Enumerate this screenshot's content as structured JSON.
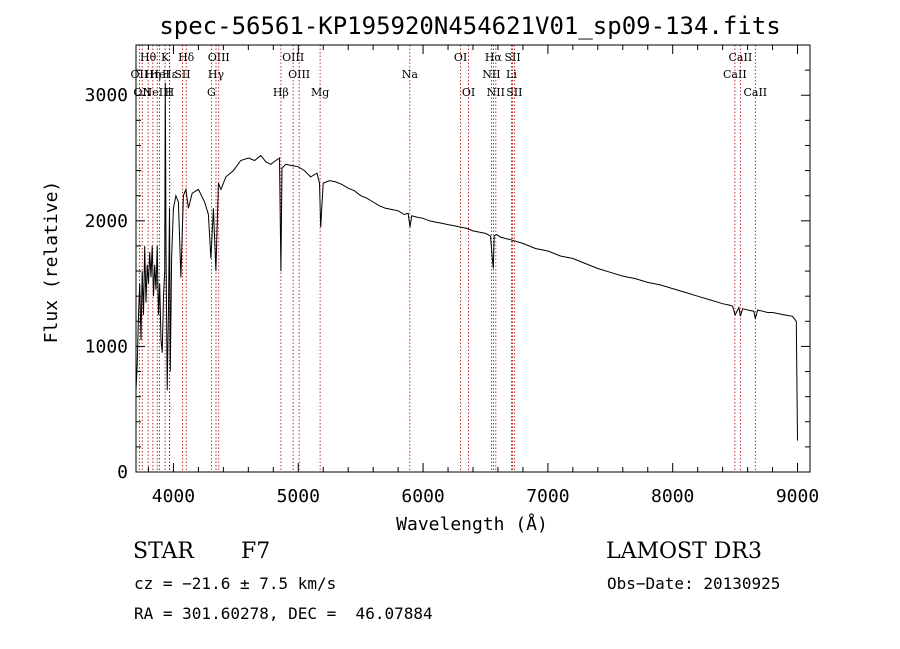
{
  "chart_data": {
    "type": "line",
    "title": "spec-56561-KP195920N454621V01_sp09-134.fits",
    "xlabel": "Wavelength (Å)",
    "ylabel": "Flux (relative)",
    "xlim": [
      3700,
      9100
    ],
    "ylim": [
      0,
      3400
    ],
    "x_ticks": [
      4000,
      5000,
      6000,
      7000,
      8000,
      9000
    ],
    "y_ticks": [
      0,
      1000,
      2000,
      3000
    ],
    "series": [
      {
        "name": "spectrum",
        "x": [
          3700,
          3710,
          3720,
          3730,
          3740,
          3750,
          3760,
          3770,
          3780,
          3790,
          3800,
          3810,
          3820,
          3830,
          3840,
          3850,
          3860,
          3870,
          3880,
          3890,
          3900,
          3910,
          3920,
          3930,
          3935,
          3940,
          3950,
          3960,
          3968,
          3975,
          3985,
          4000,
          4020,
          4040,
          4060,
          4080,
          4100,
          4120,
          4150,
          4200,
          4250,
          4280,
          4300,
          4320,
          4340,
          4360,
          4380,
          4420,
          4480,
          4540,
          4600,
          4650,
          4700,
          4740,
          4780,
          4820,
          4850,
          4861,
          4870,
          4900,
          4950,
          5000,
          5050,
          5100,
          5150,
          5170,
          5180,
          5200,
          5250,
          5300,
          5350,
          5400,
          5450,
          5500,
          5550,
          5600,
          5650,
          5700,
          5750,
          5800,
          5850,
          5880,
          5895,
          5910,
          5950,
          6000,
          6050,
          6100,
          6150,
          6200,
          6250,
          6300,
          6350,
          6400,
          6450,
          6500,
          6540,
          6555,
          6563,
          6570,
          6590,
          6620,
          6700,
          6800,
          6900,
          7000,
          7100,
          7200,
          7300,
          7400,
          7500,
          7600,
          7700,
          7800,
          7900,
          8000,
          8100,
          8200,
          8300,
          8400,
          8450,
          8480,
          8500,
          8530,
          8542,
          8560,
          8600,
          8650,
          8662,
          8680,
          8720,
          8760,
          8800,
          8850,
          8900,
          8960,
          8990,
          9000
        ],
        "y": [
          650,
          850,
          1250,
          1500,
          1050,
          1600,
          1250,
          1800,
          1350,
          1650,
          1500,
          1750,
          1550,
          1800,
          1400,
          1650,
          1450,
          1800,
          1250,
          1500,
          1050,
          950,
          1400,
          1600,
          3100,
          1800,
          650,
          1300,
          2100,
          800,
          1700,
          2100,
          2200,
          2150,
          1550,
          2200,
          2250,
          2100,
          2220,
          2250,
          2150,
          2050,
          1700,
          2100,
          1600,
          2300,
          2250,
          2350,
          2400,
          2480,
          2500,
          2480,
          2520,
          2470,
          2450,
          2480,
          2500,
          1600,
          2420,
          2450,
          2440,
          2430,
          2400,
          2350,
          2380,
          2300,
          1950,
          2300,
          2320,
          2310,
          2290,
          2260,
          2240,
          2200,
          2180,
          2150,
          2120,
          2100,
          2090,
          2080,
          2050,
          2060,
          1950,
          2040,
          2030,
          2020,
          2000,
          1990,
          1980,
          1970,
          1960,
          1950,
          1940,
          1920,
          1910,
          1900,
          1880,
          1700,
          1620,
          1880,
          1890,
          1870,
          1850,
          1820,
          1780,
          1760,
          1720,
          1700,
          1660,
          1620,
          1590,
          1560,
          1540,
          1510,
          1490,
          1460,
          1430,
          1400,
          1370,
          1340,
          1330,
          1320,
          1250,
          1310,
          1240,
          1300,
          1290,
          1280,
          1220,
          1290,
          1280,
          1270,
          1270,
          1260,
          1250,
          1240,
          1200,
          250
        ]
      }
    ],
    "lines": [
      {
        "wave": 3727,
        "label": "OII",
        "row": 2
      },
      {
        "wave": 3750,
        "label": "OII",
        "row": 3
      },
      {
        "wave": 3797,
        "label": "Hθ",
        "row": 1
      },
      {
        "wave": 3835,
        "label": "Hη",
        "row": 2
      },
      {
        "wave": 3870,
        "label": "NeIII",
        "row": 3
      },
      {
        "wave": 3889,
        "label": "HeI",
        "row": 2
      },
      {
        "wave": 3933,
        "label": "K",
        "row": 1
      },
      {
        "wave": 3968,
        "label": "H",
        "row": 3
      },
      {
        "wave": 3970,
        "label": "Hε",
        "row": 2
      },
      {
        "wave": 4072,
        "label": "SII",
        "row": 2
      },
      {
        "wave": 4102,
        "label": "Hδ",
        "row": 1
      },
      {
        "wave": 4304,
        "label": "G",
        "row": 3
      },
      {
        "wave": 4341,
        "label": "Hγ",
        "row": 2
      },
      {
        "wave": 4363,
        "label": "OIII",
        "row": 1
      },
      {
        "wave": 4861,
        "label": "Hβ",
        "row": 3
      },
      {
        "wave": 4959,
        "label": "OIII",
        "row": 1
      },
      {
        "wave": 5007,
        "label": "OIII",
        "row": 2
      },
      {
        "wave": 5175,
        "label": "Mg",
        "row": 3
      },
      {
        "wave": 5894,
        "label": "Na",
        "row": 2
      },
      {
        "wave": 6300,
        "label": "OI",
        "row": 1
      },
      {
        "wave": 6364,
        "label": "OI",
        "row": 3
      },
      {
        "wave": 6548,
        "label": "NII",
        "row": 2
      },
      {
        "wave": 6563,
        "label": "Hα",
        "row": 1
      },
      {
        "wave": 6583,
        "label": "NII",
        "row": 3
      },
      {
        "wave": 6708,
        "label": "Li",
        "row": 2
      },
      {
        "wave": 6717,
        "label": "SII",
        "row": 1
      },
      {
        "wave": 6731,
        "label": "SII",
        "row": 3
      },
      {
        "wave": 8498,
        "label": "CaII",
        "row": 2
      },
      {
        "wave": 8542,
        "label": "CaII",
        "row": 1
      },
      {
        "wave": 8662,
        "label": "CaII",
        "row": 3
      }
    ]
  },
  "info": {
    "class": "STAR",
    "subclass": "F7",
    "survey": "LAMOST DR3",
    "cz": "cz = −21.6 ± 7.5 km/s",
    "obs_date": "Obs−Date: 20130925",
    "coords": "RA = 301.60278, DEC =  46.07884"
  }
}
